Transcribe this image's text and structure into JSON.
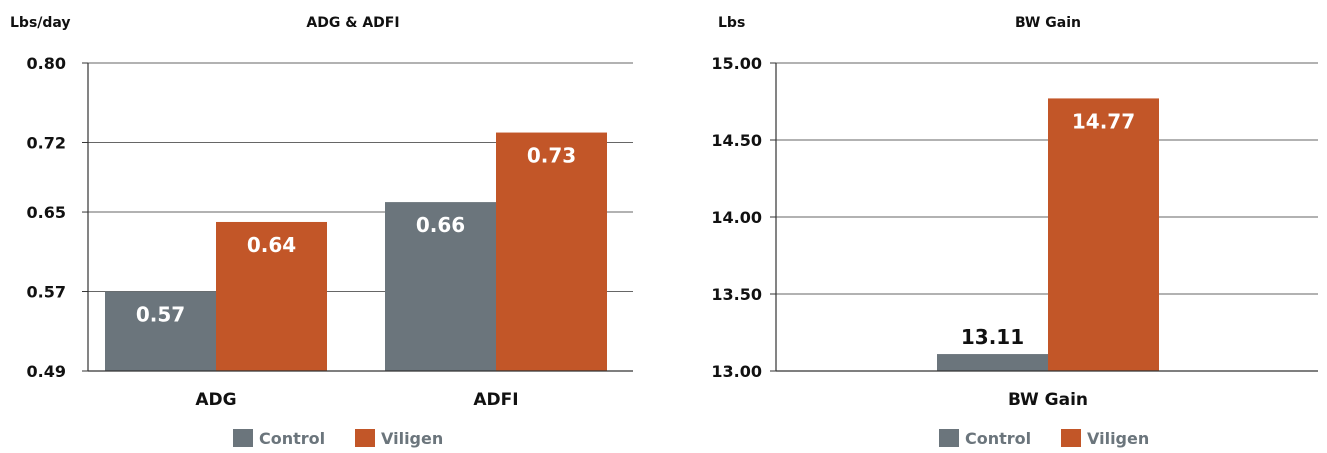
{
  "colors": {
    "control": "#6b757c",
    "viligen": "#c25628",
    "grid": "#666666",
    "axis": "#333333"
  },
  "chart_data": [
    {
      "type": "bar",
      "title": "ADG & ADFI",
      "ylabel": "Lbs/day",
      "categories": [
        "ADG",
        "ADFI"
      ],
      "series": [
        {
          "name": "Control",
          "values": [
            0.57,
            0.66
          ]
        },
        {
          "name": "Viligen",
          "values": [
            0.64,
            0.73
          ]
        }
      ],
      "ylim": [
        0.49,
        0.8
      ],
      "yticks": [
        0.49,
        0.57,
        0.65,
        0.72,
        0.8
      ],
      "ytick_labels": [
        "0.49",
        "0.57",
        "0.65",
        "0.72",
        "0.80"
      ],
      "data_labels": [
        [
          "0.57",
          "0.66"
        ],
        [
          "0.64",
          "0.73"
        ]
      ],
      "grid": true,
      "legend": "bottom"
    },
    {
      "type": "bar",
      "title": "BW Gain",
      "ylabel": "Lbs",
      "categories": [
        "BW Gain"
      ],
      "series": [
        {
          "name": "Control",
          "values": [
            13.11
          ]
        },
        {
          "name": "Viligen",
          "values": [
            14.77
          ]
        }
      ],
      "ylim": [
        13.0,
        15.0
      ],
      "yticks": [
        13.0,
        13.5,
        14.0,
        14.5,
        15.0
      ],
      "ytick_labels": [
        "13.00",
        "13.50",
        "14.00",
        "14.50",
        "15.00"
      ],
      "data_labels": [
        [
          "13.11"
        ],
        [
          "14.77"
        ]
      ],
      "grid": true,
      "legend": "bottom"
    }
  ]
}
